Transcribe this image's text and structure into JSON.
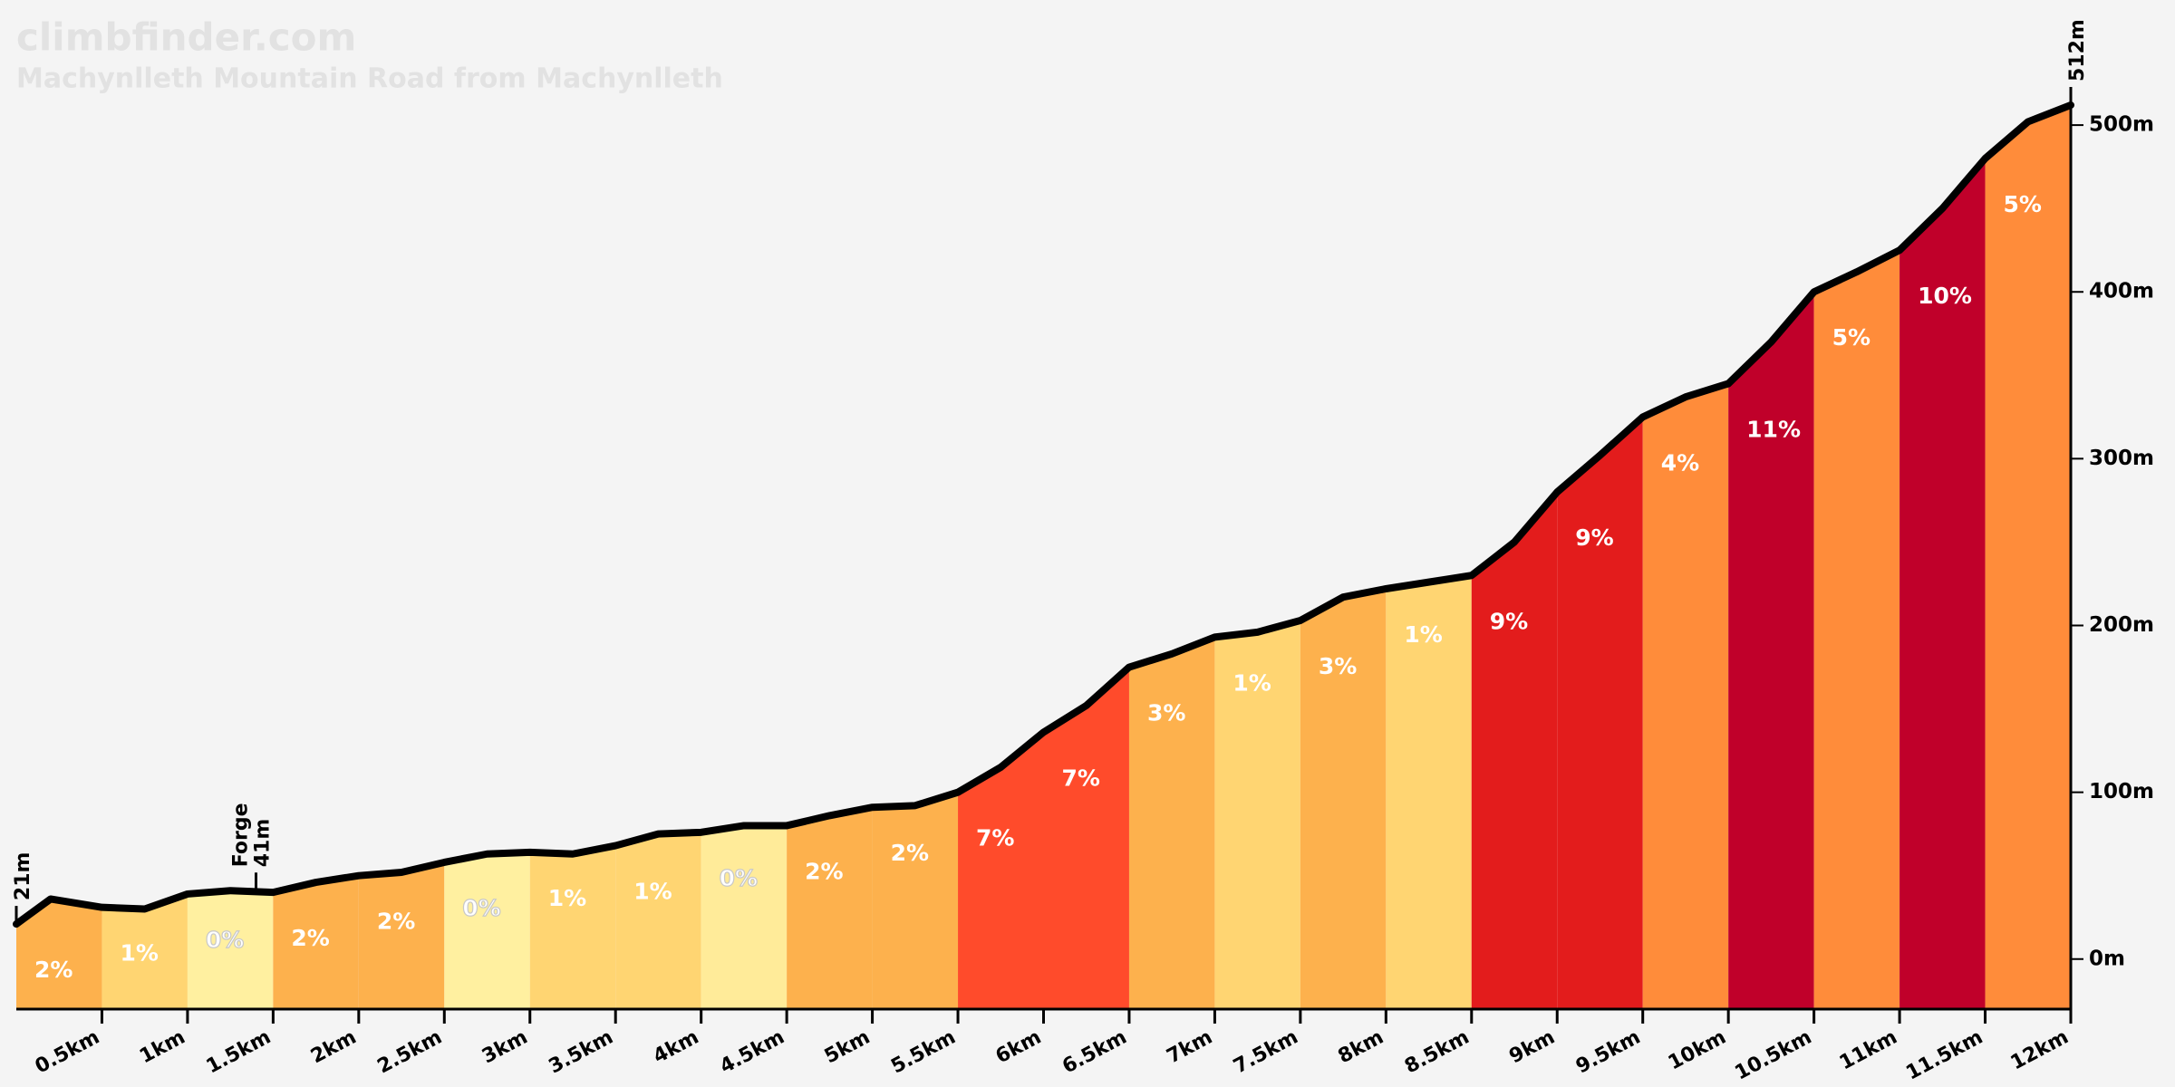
{
  "chart_data": {
    "type": "area",
    "title": "climbfinder.com",
    "subtitle": "Machynlleth Mountain Road from Machynlleth",
    "x": [
      0,
      0.2,
      0.5,
      0.75,
      1,
      1.25,
      1.5,
      1.75,
      2,
      2.25,
      2.5,
      2.75,
      3,
      3.25,
      3.5,
      3.75,
      4,
      4.25,
      4.5,
      4.75,
      5,
      5.25,
      5.5,
      5.75,
      6,
      6.25,
      6.5,
      6.75,
      7,
      7.25,
      7.5,
      7.75,
      8,
      8.25,
      8.5,
      8.75,
      9,
      9.25,
      9.5,
      9.75,
      10,
      10.25,
      10.5,
      10.75,
      11,
      11.25,
      11.5,
      11.75,
      12
    ],
    "values": [
      21,
      36,
      31,
      30,
      39,
      41,
      40,
      46,
      50,
      52,
      58,
      63,
      64,
      63,
      68,
      75,
      76,
      80,
      80,
      86,
      91,
      92,
      100,
      115,
      136,
      152,
      175,
      183,
      193,
      196,
      203,
      217,
      222,
      226,
      230,
      250,
      280,
      302,
      325,
      337,
      345,
      370,
      400,
      412,
      425,
      450,
      480,
      502,
      512
    ],
    "color": "#000000",
    "segments": {
      "bins": [
        0,
        0.5,
        1,
        1.5,
        2,
        2.5,
        3,
        3.5,
        4,
        4.5,
        5,
        5.5,
        6,
        6.5,
        7,
        7.5,
        8,
        8.5,
        9,
        9.5,
        10,
        10.5,
        11,
        11.5,
        12
      ],
      "values": [
        2,
        1,
        0,
        2,
        2,
        0,
        1,
        1,
        0,
        2,
        2,
        7,
        7,
        3,
        1,
        3,
        1,
        9,
        9,
        4,
        11,
        5,
        10,
        5
      ],
      "value_labels": [
        "2%",
        "1%",
        "0%",
        "2%",
        "2%",
        "0%",
        "1%",
        "1%",
        "0%",
        "2%",
        "2%",
        "7%",
        "7%",
        "3%",
        "1%",
        "3%",
        "1%",
        "9%",
        "9%",
        "4%",
        "11%",
        "5%",
        "10%",
        "5%"
      ],
      "colors": [
        "#fdb14d",
        "#ffd572",
        "#fff0a0",
        "#fdb14d",
        "#fdb14d",
        "#fff0a0",
        "#ffd572",
        "#ffd572",
        "#ffeb99",
        "#fdb14d",
        "#fdb14d",
        "#ff4b2b",
        "#ff4b2b",
        "#fdb14d",
        "#ffd572",
        "#fdb14d",
        "#ffd572",
        "#e31c1c",
        "#e31c1c",
        "#ff8c3a",
        "#c0002a",
        "#ff8c3a",
        "#c0002a",
        "#ff8c3a"
      ]
    },
    "annotations": [
      {
        "x": 0,
        "y": 21,
        "label": "21m"
      },
      {
        "x": 1.4,
        "y": 41,
        "name": "Forge",
        "label": "41m"
      },
      {
        "x": 12,
        "y": 512,
        "label": "512m"
      }
    ],
    "xlim": [
      0,
      12
    ],
    "xticks": [
      {
        "value": 0.5,
        "label": "0.5km"
      },
      {
        "value": 1,
        "label": "1km"
      },
      {
        "value": 1.5,
        "label": "1.5km"
      },
      {
        "value": 2,
        "label": "2km"
      },
      {
        "value": 2.5,
        "label": "2.5km"
      },
      {
        "value": 3,
        "label": "3km"
      },
      {
        "value": 3.5,
        "label": "3.5km"
      },
      {
        "value": 4,
        "label": "4km"
      },
      {
        "value": 4.5,
        "label": "4.5km"
      },
      {
        "value": 5,
        "label": "5km"
      },
      {
        "value": 5.5,
        "label": "5.5km"
      },
      {
        "value": 6,
        "label": "6km"
      },
      {
        "value": 6.5,
        "label": "6.5km"
      },
      {
        "value": 7,
        "label": "7km"
      },
      {
        "value": 7.5,
        "label": "7.5km"
      },
      {
        "value": 8,
        "label": "8km"
      },
      {
        "value": 8.5,
        "label": "8.5km"
      },
      {
        "value": 9,
        "label": "9km"
      },
      {
        "value": 9.5,
        "label": "9.5km"
      },
      {
        "value": 10,
        "label": "10km"
      },
      {
        "value": 10.5,
        "label": "10.5km"
      },
      {
        "value": 11,
        "label": "11km"
      },
      {
        "value": 11.5,
        "label": "11.5km"
      },
      {
        "value": 12,
        "label": "12km"
      }
    ],
    "ylim": [
      -30,
      575
    ],
    "yticks": [
      {
        "value": 0,
        "label": "0m"
      },
      {
        "value": 100,
        "label": "100m"
      },
      {
        "value": 200,
        "label": "200m"
      },
      {
        "value": 300,
        "label": "300m"
      },
      {
        "value": 400,
        "label": "400m"
      },
      {
        "value": 500,
        "label": "500m"
      }
    ]
  }
}
